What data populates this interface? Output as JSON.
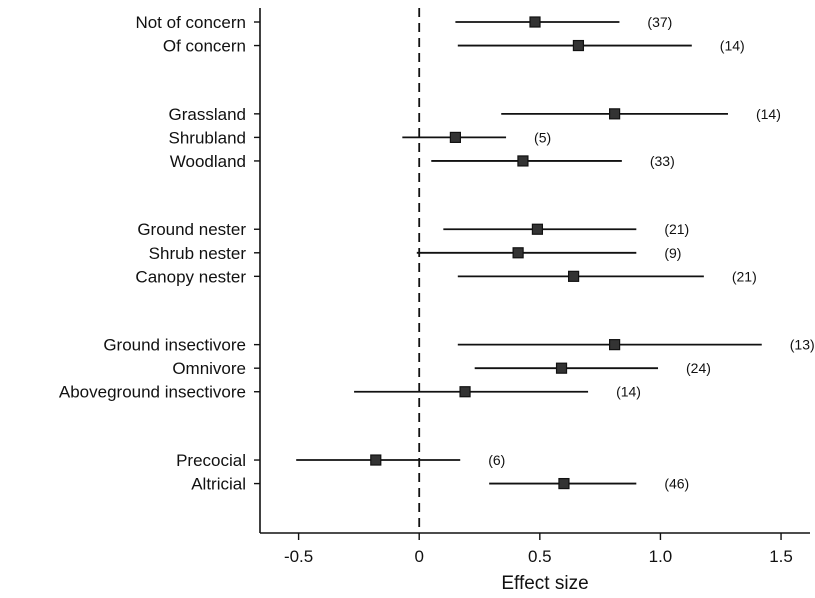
{
  "chart_data": {
    "type": "forest",
    "xlabel": "Effect size",
    "xlim": [
      -0.66,
      1.62
    ],
    "xticks": [
      -0.5,
      0,
      0.5,
      1.0,
      1.5
    ],
    "xtick_labels": [
      "-0.5",
      "0",
      "0.5",
      "1.0",
      "1.5"
    ],
    "reference_line": 0,
    "groups": [
      {
        "rows": [
          {
            "label": "Not of concern",
            "estimate": 0.48,
            "lower": 0.15,
            "upper": 0.83,
            "n_label": "(37)"
          },
          {
            "label": "Of concern",
            "estimate": 0.66,
            "lower": 0.16,
            "upper": 1.13,
            "n_label": "(14)"
          }
        ]
      },
      {
        "rows": [
          {
            "label": "Grassland",
            "estimate": 0.81,
            "lower": 0.34,
            "upper": 1.28,
            "n_label": "(14)"
          },
          {
            "label": "Shrubland",
            "estimate": 0.15,
            "lower": -0.07,
            "upper": 0.36,
            "n_label": "(5)"
          },
          {
            "label": "Woodland",
            "estimate": 0.43,
            "lower": 0.05,
            "upper": 0.84,
            "n_label": "(33)"
          }
        ]
      },
      {
        "rows": [
          {
            "label": "Ground nester",
            "estimate": 0.49,
            "lower": 0.1,
            "upper": 0.9,
            "n_label": "(21)"
          },
          {
            "label": "Shrub nester",
            "estimate": 0.41,
            "lower": -0.01,
            "upper": 0.9,
            "n_label": "(9)"
          },
          {
            "label": "Canopy nester",
            "estimate": 0.64,
            "lower": 0.16,
            "upper": 1.18,
            "n_label": "(21)"
          }
        ]
      },
      {
        "rows": [
          {
            "label": "Ground insectivore",
            "estimate": 0.81,
            "lower": 0.16,
            "upper": 1.42,
            "n_label": "(13)"
          },
          {
            "label": "Omnivore",
            "estimate": 0.59,
            "lower": 0.23,
            "upper": 0.99,
            "n_label": "(24)"
          },
          {
            "label": "Aboveground insectivore",
            "estimate": 0.19,
            "lower": -0.27,
            "upper": 0.7,
            "n_label": "(14)"
          }
        ]
      },
      {
        "rows": [
          {
            "label": "Precocial",
            "estimate": -0.18,
            "lower": -0.51,
            "upper": 0.17,
            "n_label": "(6)"
          },
          {
            "label": "Altricial",
            "estimate": 0.6,
            "lower": 0.29,
            "upper": 0.9,
            "n_label": "(46)"
          }
        ]
      }
    ]
  }
}
